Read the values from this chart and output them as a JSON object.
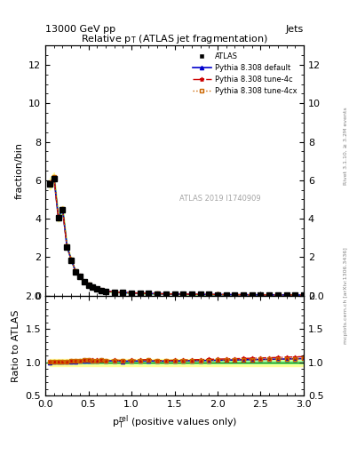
{
  "title": "Relative $p_T$ (ATLAS jet fragmentation)",
  "header_left": "13000 GeV pp",
  "header_right": "Jets",
  "ylabel_main": "fraction/bin",
  "ylabel_ratio": "Ratio to ATLAS",
  "xlabel": "$p_{T}^{rel}$ (positive values only)",
  "watermark": "ATLAS 2019 I1740909",
  "right_label": "Rivet 3.1.10, ≥ 3.2M events",
  "right_label2": "mcplots.cern.ch [arXiv:1306.3436]",
  "xlim": [
    0,
    3
  ],
  "ylim_main": [
    0,
    13
  ],
  "ylim_ratio": [
    0.5,
    2.0
  ],
  "x_data": [
    0.05,
    0.1,
    0.15,
    0.2,
    0.25,
    0.3,
    0.35,
    0.4,
    0.45,
    0.5,
    0.55,
    0.6,
    0.65,
    0.7,
    0.8,
    0.9,
    1.0,
    1.1,
    1.2,
    1.3,
    1.4,
    1.5,
    1.6,
    1.7,
    1.8,
    1.9,
    2.0,
    2.1,
    2.2,
    2.3,
    2.4,
    2.5,
    2.6,
    2.7,
    2.8,
    2.9,
    3.0
  ],
  "y_atlas": [
    5.8,
    6.1,
    4.05,
    4.45,
    2.55,
    1.85,
    1.25,
    1.0,
    0.72,
    0.55,
    0.43,
    0.35,
    0.28,
    0.23,
    0.19,
    0.165,
    0.145,
    0.13,
    0.115,
    0.105,
    0.095,
    0.088,
    0.082,
    0.075,
    0.07,
    0.065,
    0.06,
    0.056,
    0.053,
    0.05,
    0.047,
    0.044,
    0.042,
    0.04,
    0.038,
    0.036,
    0.034
  ],
  "y_default": [
    5.82,
    6.15,
    4.08,
    4.5,
    2.57,
    1.88,
    1.27,
    1.02,
    0.74,
    0.565,
    0.44,
    0.36,
    0.29,
    0.235,
    0.195,
    0.168,
    0.148,
    0.133,
    0.118,
    0.107,
    0.097,
    0.09,
    0.084,
    0.077,
    0.072,
    0.067,
    0.062,
    0.058,
    0.055,
    0.052,
    0.049,
    0.046,
    0.044,
    0.042,
    0.04,
    0.038,
    0.036
  ],
  "y_tune4c": [
    5.85,
    6.18,
    4.1,
    4.52,
    2.59,
    1.9,
    1.28,
    1.03,
    0.75,
    0.57,
    0.445,
    0.362,
    0.292,
    0.237,
    0.197,
    0.17,
    0.15,
    0.135,
    0.12,
    0.108,
    0.098,
    0.091,
    0.085,
    0.078,
    0.073,
    0.068,
    0.063,
    0.059,
    0.056,
    0.053,
    0.05,
    0.047,
    0.045,
    0.043,
    0.041,
    0.039,
    0.037
  ],
  "y_tune4cx": [
    5.84,
    6.16,
    4.09,
    4.51,
    2.58,
    1.89,
    1.275,
    1.025,
    0.745,
    0.568,
    0.442,
    0.36,
    0.29,
    0.236,
    0.196,
    0.169,
    0.149,
    0.134,
    0.119,
    0.107,
    0.097,
    0.09,
    0.084,
    0.077,
    0.072,
    0.067,
    0.062,
    0.058,
    0.055,
    0.052,
    0.049,
    0.046,
    0.044,
    0.042,
    0.04,
    0.038,
    0.036
  ],
  "color_atlas": "#000000",
  "color_default": "#0000cc",
  "color_tune4c": "#cc0000",
  "color_tune4cx": "#cc6600",
  "band_color_yellow": "#ffff99",
  "band_color_green": "#99ff99",
  "yticks_main": [
    0,
    2,
    4,
    6,
    8,
    10,
    12
  ],
  "yticks_ratio": [
    0.5,
    1.0,
    1.5,
    2.0
  ],
  "xticks": [
    0,
    0.5,
    1.0,
    1.5,
    2.0,
    2.5,
    3.0
  ]
}
